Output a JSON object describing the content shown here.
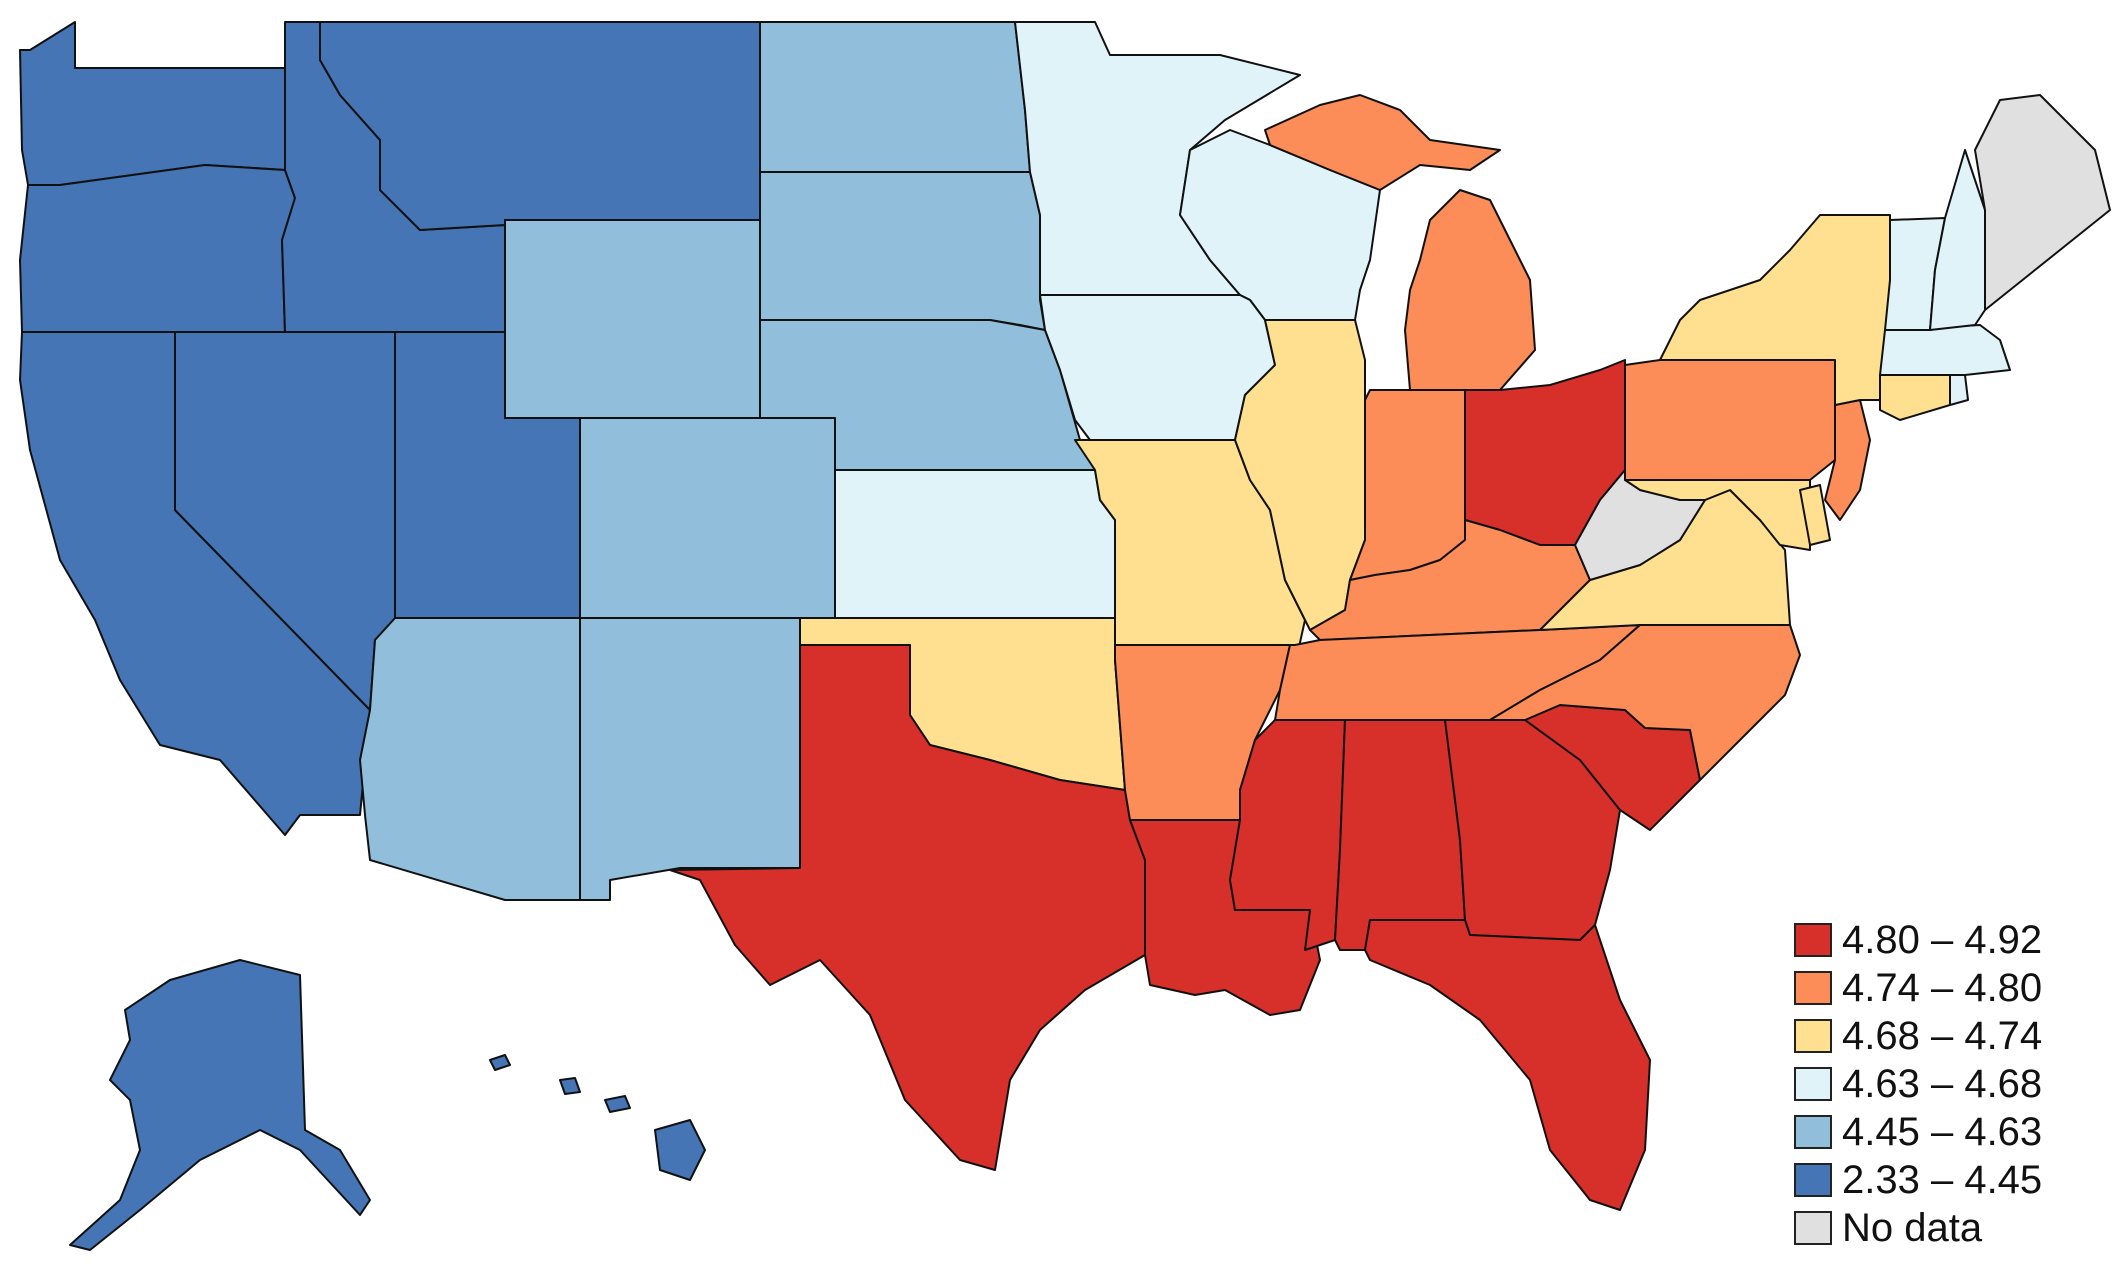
{
  "map": {
    "fills": {
      "c1": "#d7302a",
      "c2": "#fc8d59",
      "c3": "#fee090",
      "c4": "#e0f3f8",
      "c5": "#91bfdb",
      "c6": "#4575b4",
      "nodata": "#e0e0e0"
    },
    "states": {
      "WA": "c6",
      "OR": "c6",
      "CA": "c6",
      "ID": "c6",
      "NV": "c6",
      "UT": "c6",
      "MT": "c6",
      "AK": "c6",
      "HI": "c6",
      "WY": "c5",
      "CO": "c5",
      "AZ": "c5",
      "NM": "c5",
      "ND": "c5",
      "SD": "c5",
      "NE": "c5",
      "KS": "c4",
      "MN": "c4",
      "IA": "c4",
      "WI": "c4",
      "VT": "c4",
      "NH": "c4",
      "MA": "c4",
      "RI": "c4",
      "OK": "c3",
      "MO": "c3",
      "IL": "c3",
      "NY": "c3",
      "CT": "c3",
      "VA": "c3",
      "MD": "c3",
      "DE": "c3",
      "AR": "c2",
      "MI": "c2",
      "IN": "c2",
      "KY": "c2",
      "TN": "c2",
      "NC": "c2",
      "PA": "c2",
      "NJ": "c2",
      "TX": "c1",
      "LA": "c1",
      "MS": "c1",
      "AL": "c1",
      "GA": "c1",
      "SC": "c1",
      "FL": "c1",
      "OH": "c1",
      "ME": "nodata",
      "WV": "nodata"
    }
  },
  "legend": {
    "items": [
      {
        "label": "4.80 – 4.92",
        "color": "#d7302a"
      },
      {
        "label": "4.74 – 4.80",
        "color": "#fc8d59"
      },
      {
        "label": "4.68 – 4.74",
        "color": "#fee090"
      },
      {
        "label": "4.63 – 4.68",
        "color": "#e0f3f8"
      },
      {
        "label": "4.45 – 4.63",
        "color": "#91bfdb"
      },
      {
        "label": "2.33 – 4.45",
        "color": "#4575b4"
      },
      {
        "label": "No data",
        "color": "#e0e0e0"
      }
    ]
  }
}
